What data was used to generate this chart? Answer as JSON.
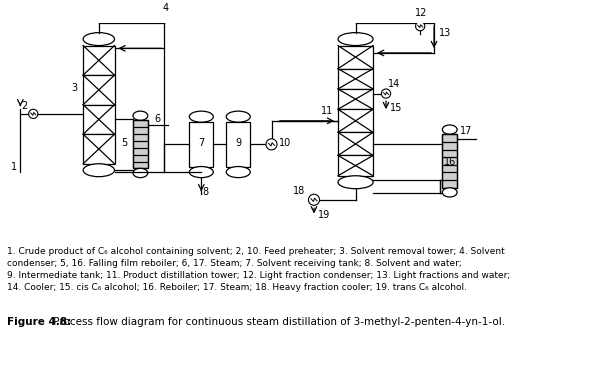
{
  "title": "Figure 4.8:",
  "title_text": " Process flow diagram for continuous steam distillation of 3-methyl-2-penten-4-yn-1-ol.",
  "caption_lines": [
    "1. Crude product of C₆ alcohol containing solvent; 2, 10. Feed preheater; 3. Solvent removal tower; 4. Solvent",
    "condenser; 5, 16. Falling film reboiler; 6, 17. Steam; 7. Solvent receiving tank; 8. Solvent and water;",
    "9. Intermediate tank; 11. Product distillation tower; 12. Light fraction condenser; 13. Light fractions and water;",
    "14. Cooler; 15. cis C₆ alcohol; 16. Reboiler; 17. Steam; 18. Heavy fraction cooler; 19. trans C₆ alcohol."
  ],
  "bg_color": "#ffffff",
  "line_color": "#000000"
}
